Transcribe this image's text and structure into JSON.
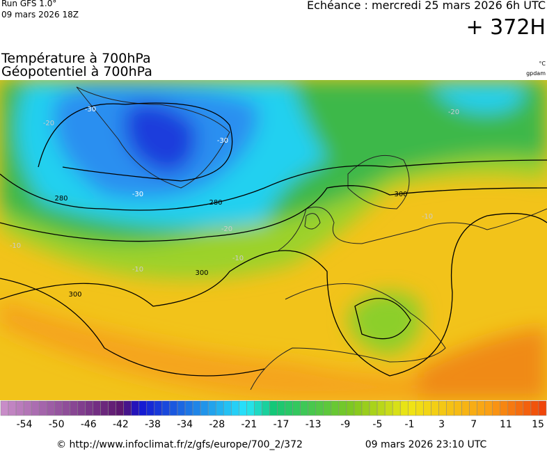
{
  "header": {
    "run": "Run GFS 1.0°",
    "run_date": "09 mars 2026 18Z",
    "echeance": "Echéance : mercredi 25 mars 2026 6h UTC",
    "lead": "+ 372H",
    "title_temp": "Température à 700hPa",
    "title_geo": "Géopotentiel à 700hPa",
    "unit_temp": "°C",
    "unit_geo": "gpdam"
  },
  "map": {
    "contour_labels": [
      "280",
      "280",
      "300",
      "300",
      "300",
      "-30",
      "-30",
      "-30",
      "-20",
      "-20",
      "-20",
      "-10",
      "-10",
      "-10",
      "-10"
    ]
  },
  "colorbar": {
    "ticks": [
      -54,
      -50,
      -46,
      -42,
      -38,
      -34,
      -28,
      -21,
      -17,
      -13,
      -9,
      -5,
      -1,
      3,
      7,
      11,
      15
    ]
  },
  "footer": {
    "url": "© http://www.infoclimat.fr/z/gfs/europe/700_2/372",
    "generated": "09 mars 2026 23:10 UTC"
  }
}
